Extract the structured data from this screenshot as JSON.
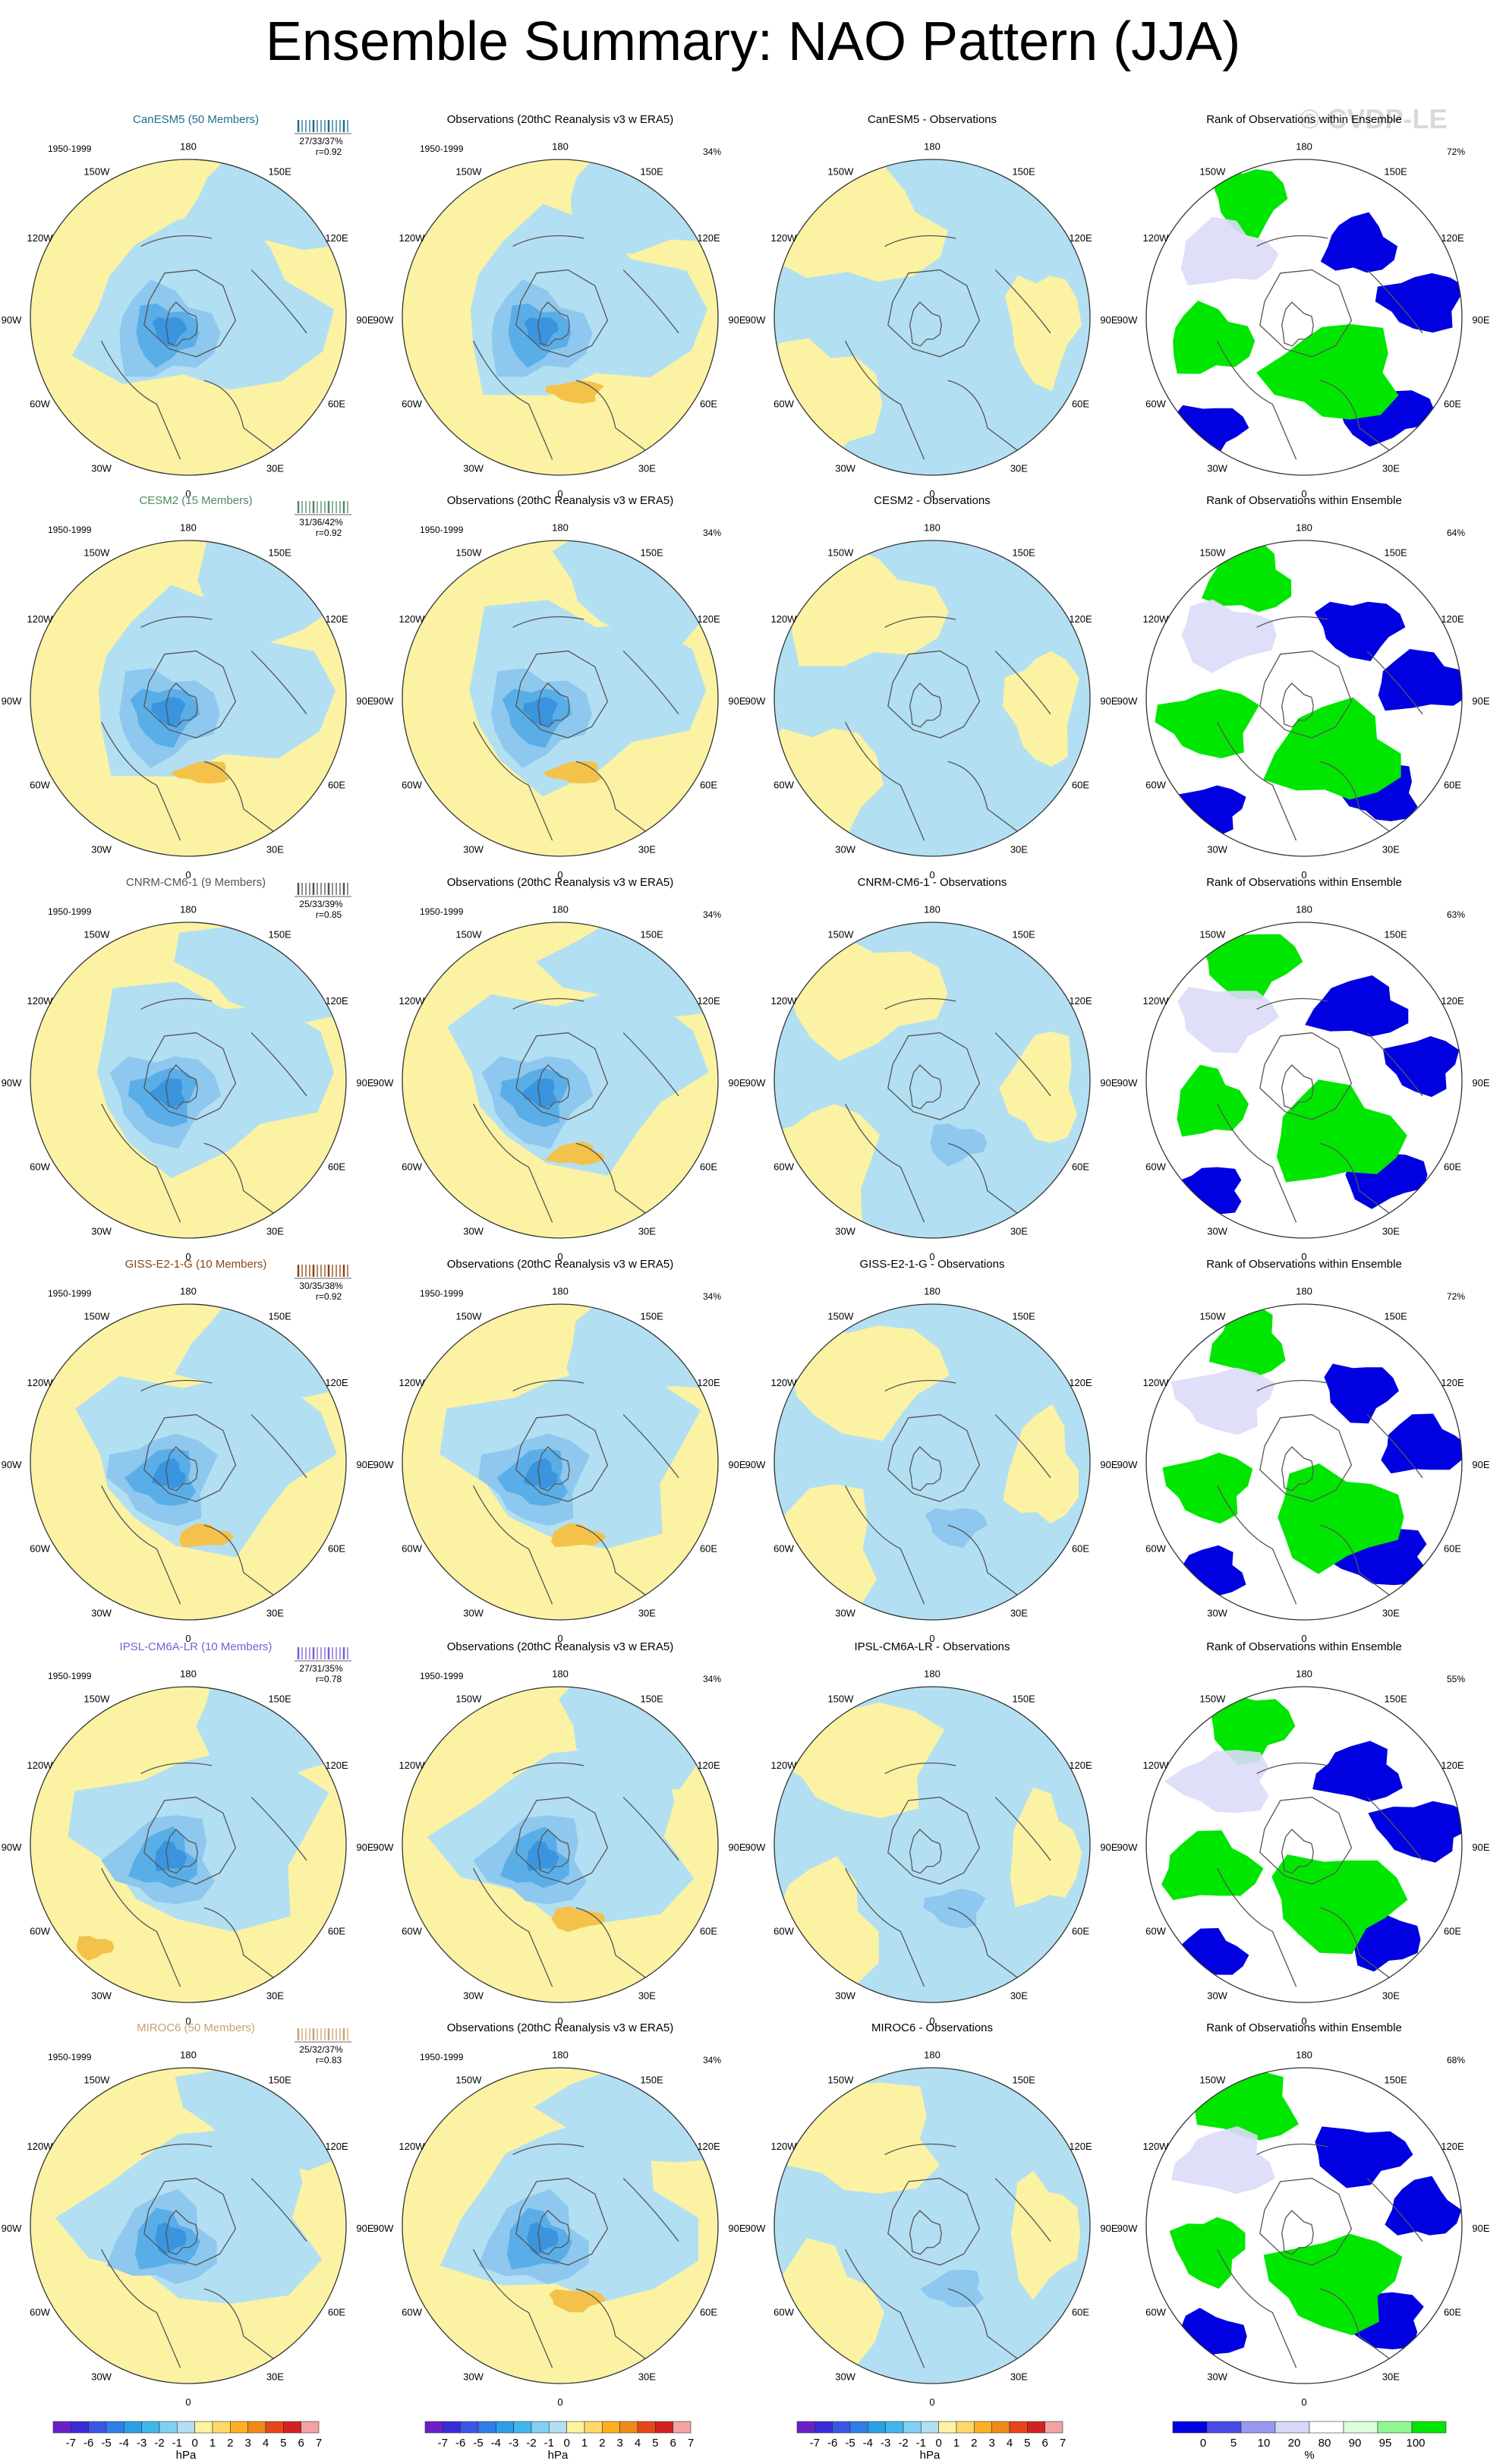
{
  "title": "Ensemble Summary: NAO Pattern (JJA)",
  "watermark": "© CVDP-LE",
  "period": "1950-1999",
  "obs_title": "Observations (20thC Reanalysis v3 w ERA5)",
  "obs_pct": "34%",
  "rank_title": "Rank of Observations within Ensemble",
  "lon_labels": {
    "top": "180",
    "tl": "150W",
    "tr": "150E",
    "ul": "120W",
    "ur": "120E",
    "l": "90W",
    "r": "90E",
    "ll": "60W",
    "lr": "60E",
    "bl": "30W",
    "br": "30E",
    "bottom": "0"
  },
  "rows": [
    {
      "model": "CanESM5 (50 Members)",
      "color": "#1f6e8c",
      "pct": "27/33/37%",
      "r": "r=0.92",
      "diff_title": "CanESM5 - Observations",
      "rank_pct": "72%"
    },
    {
      "model": "CESM2 (15 Members)",
      "color": "#4f8a63",
      "pct": "31/36/42%",
      "r": "r=0.92",
      "diff_title": "CESM2 - Observations",
      "rank_pct": "64%"
    },
    {
      "model": "CNRM-CM6-1 (9 Members)",
      "color": "#555555",
      "pct": "25/33/39%",
      "r": "r=0.85",
      "diff_title": "CNRM-CM6-1 - Observations",
      "rank_pct": "63%"
    },
    {
      "model": "GISS-E2-1-G (10 Members)",
      "color": "#8b4513",
      "pct": "30/35/38%",
      "r": "r=0.92",
      "diff_title": "GISS-E2-1-G - Observations",
      "rank_pct": "72%"
    },
    {
      "model": "IPSL-CM6A-LR (10 Members)",
      "color": "#7b5cd6",
      "pct": "27/31/35%",
      "r": "r=0.78",
      "diff_title": "IPSL-CM6A-LR - Observations",
      "rank_pct": "55%"
    },
    {
      "model": "MIROC6 (50 Members)",
      "color": "#c8a070",
      "pct": "25/32/37%",
      "r": "r=0.83",
      "diff_title": "MIROC6 - Observations",
      "rank_pct": "68%"
    }
  ],
  "colorbar_hpa": {
    "labels": [
      "-7",
      "-6",
      "-5",
      "-4",
      "-3",
      "-2",
      "-1",
      "0",
      "1",
      "2",
      "3",
      "4",
      "5",
      "6",
      "7"
    ],
    "unit": "hPa",
    "colors": [
      "#6a1fc9",
      "#3a2bd8",
      "#3a56e6",
      "#2f7de8",
      "#2a9fe6",
      "#40b6ee",
      "#7fd0f2",
      "#b4dff2",
      "#fff2a0",
      "#ffd966",
      "#ffb020",
      "#f08a18",
      "#e8461a",
      "#d42020",
      "#f2a2a2"
    ]
  },
  "colorbar_rank": {
    "labels": [
      "0",
      "5",
      "10",
      "20",
      "80",
      "90",
      "95",
      "100"
    ],
    "unit": "%",
    "colors": [
      "#0000e0",
      "#4a4ae8",
      "#9898f0",
      "#d8d8f8",
      "#ffffff",
      "#dcffdc",
      "#90f890",
      "#00e600"
    ]
  },
  "colors": {
    "positive": "#fbf3a3",
    "negative": "#b3dff2",
    "neg2": "#8ec8ee",
    "neg3": "#5aaee8",
    "neg4": "#3a94de",
    "pos2": "#f4c24a",
    "rank_high": "#00e600",
    "rank_low": "#0000e0",
    "rank_lowlight": "#dcdcf8"
  }
}
